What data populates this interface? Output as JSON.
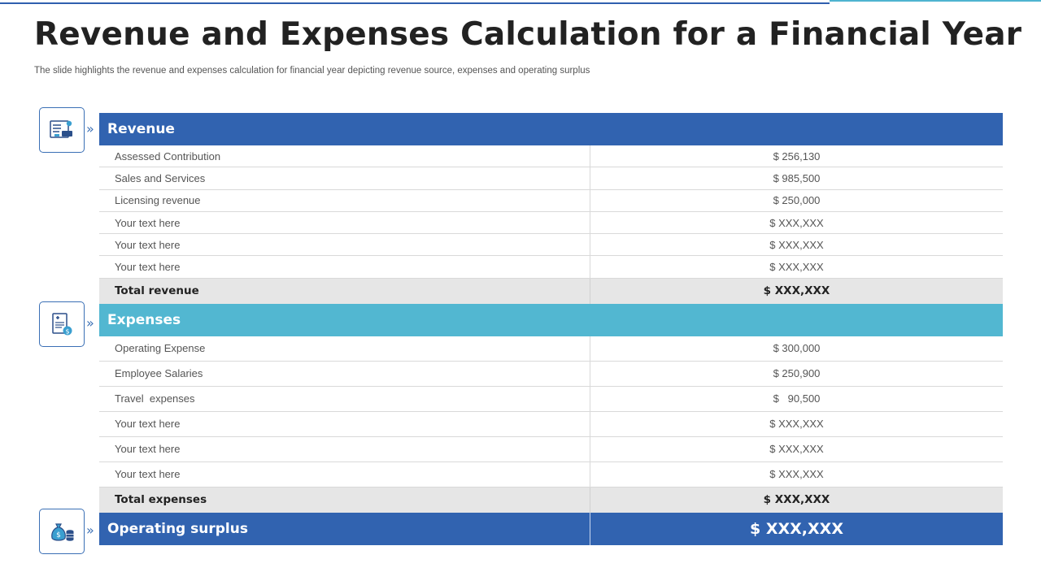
{
  "title": "Revenue and Expenses Calculation for a Financial Year",
  "subtitle": "The slide highlights the revenue and expenses calculation for financial year depicting revenue source, expenses and operating surplus",
  "colors": {
    "primary_blue": "#3163b0",
    "light_blue": "#52b7d1",
    "total_gray": "#e6e6e6"
  },
  "icons": {
    "revenue": "revenue-document-icon",
    "expenses": "invoice-dollar-icon",
    "surplus": "money-bag-coins-icon",
    "chevron": "»"
  },
  "revenue": {
    "header": "Revenue",
    "rows": [
      {
        "label": "Assessed Contribution",
        "value": "$ 256,130"
      },
      {
        "label": "Sales and Services",
        "value": "$ 985,500"
      },
      {
        "label": "Licensing revenue",
        "value": "$ 250,000"
      },
      {
        "label": "Your text here",
        "value": "$ XXX,XXX"
      },
      {
        "label": "Your text here",
        "value": "$ XXX,XXX"
      },
      {
        "label": "Your text here",
        "value": "$ XXX,XXX"
      }
    ],
    "total_label": "Total revenue",
    "total_value": "$ XXX,XXX"
  },
  "expenses": {
    "header": "Expenses",
    "rows": [
      {
        "label": "Operating Expense",
        "value": "$ 300,000"
      },
      {
        "label": "Employee Salaries",
        "value": "$ 250,900"
      },
      {
        "label": "Travel  expenses",
        "value": "$   90,500"
      },
      {
        "label": "Your text here",
        "value": "$ XXX,XXX"
      },
      {
        "label": "Your text here",
        "value": "$ XXX,XXX"
      },
      {
        "label": "Your text here",
        "value": "$ XXX,XXX"
      }
    ],
    "total_label": "Total expenses",
    "total_value": "$ XXX,XXX"
  },
  "surplus": {
    "label": "Operating surplus",
    "value": "$ XXX,XXX"
  }
}
